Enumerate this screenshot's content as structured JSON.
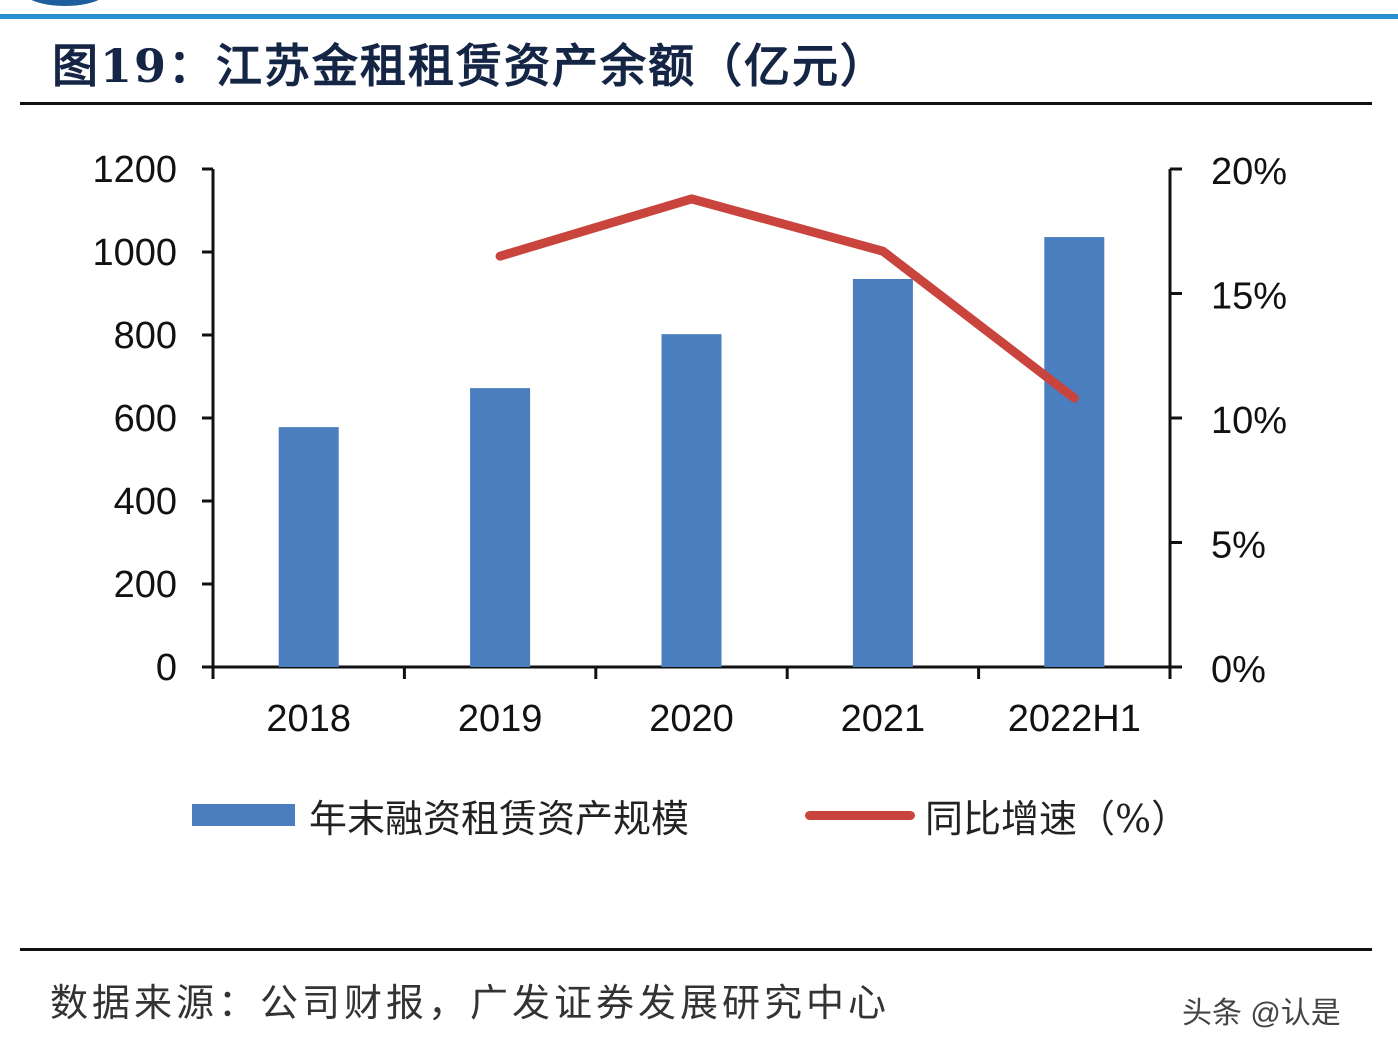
{
  "title": "图19：江苏金租租赁资产余额（亿元）",
  "source": "数据来源：公司财报，广发证券发展研究中心",
  "watermark": "头条 @认是",
  "chart_data": {
    "type": "bar+line",
    "categories": [
      "2018",
      "2019",
      "2020",
      "2021",
      "2022H1"
    ],
    "series": [
      {
        "name": "年末融资租赁资产规模",
        "type": "bar",
        "axis": "left",
        "color": "#4a7ebf",
        "values": [
          578,
          672,
          802,
          935,
          1036
        ]
      },
      {
        "name": "同比增速（%）",
        "type": "line",
        "axis": "right",
        "color": "#c9443c",
        "values": [
          null,
          16.5,
          18.8,
          16.7,
          10.8
        ]
      }
    ],
    "left_axis": {
      "ylim": [
        0,
        1200
      ],
      "ticks": [
        "0",
        "200",
        "400",
        "600",
        "800",
        "1000",
        "1200"
      ]
    },
    "right_axis": {
      "ylim": [
        0,
        20
      ],
      "ticks": [
        "0%",
        "5%",
        "10%",
        "15%",
        "20%"
      ]
    },
    "grid": false,
    "legend_position": "bottom"
  }
}
